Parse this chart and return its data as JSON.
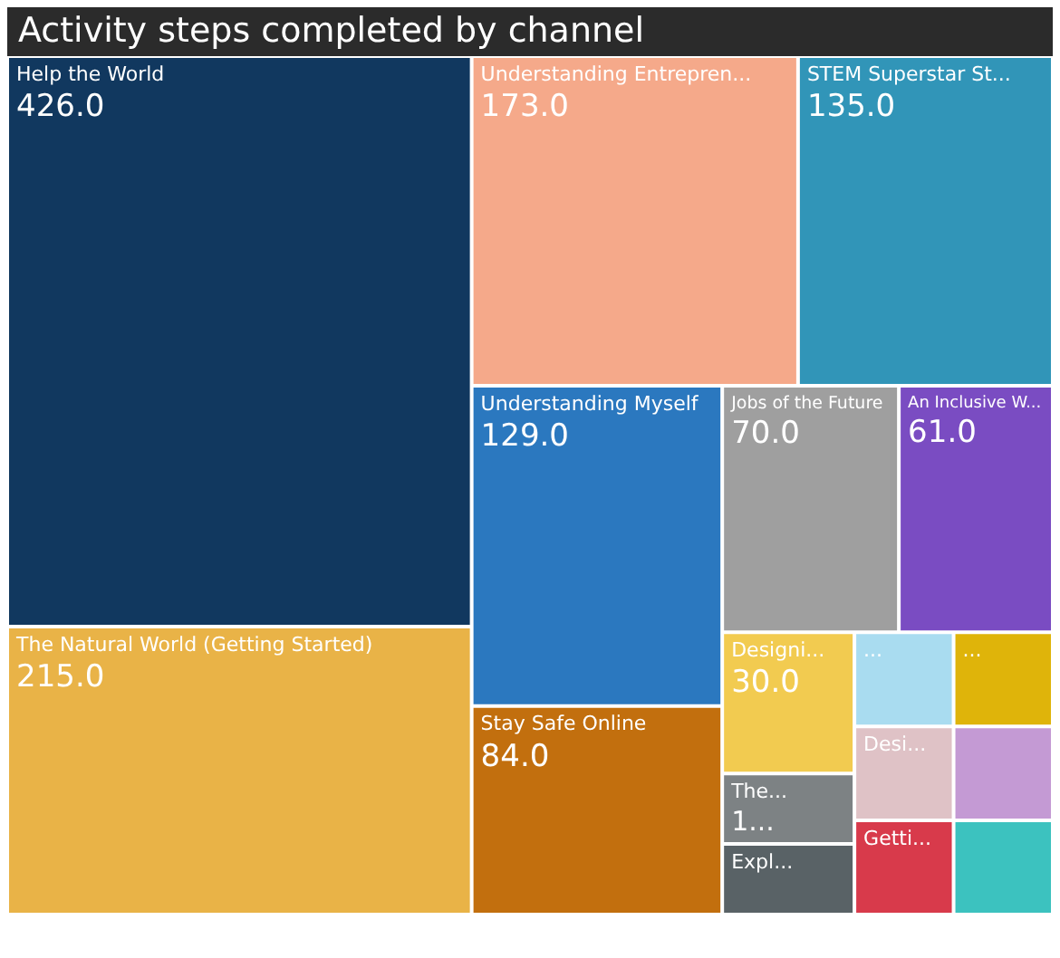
{
  "chart_data": {
    "type": "other",
    "title": "Activity steps completed by channel",
    "categories": [
      "Help the World",
      "The Natural World (Getting Started)",
      "Understanding Entrepren...",
      "STEM Superstar St...",
      "Understanding Myself",
      "Stay Safe Online",
      "Jobs of the Future",
      "An Inclusive W...",
      "Designi...",
      "The...",
      "Expl...",
      "...",
      "...",
      "Desi...",
      "Getti...",
      null,
      null
    ],
    "values": [
      426,
      215,
      173,
      135,
      129,
      84,
      70,
      61,
      30,
      null,
      null,
      null,
      null,
      null,
      null,
      null,
      null
    ],
    "value_labels": [
      "426.0",
      "215.0",
      "173.0",
      "135.0",
      "129.0",
      "84.0",
      "70.0",
      "61.0",
      "30.0",
      "1...",
      null,
      null,
      null,
      null,
      null,
      null,
      null
    ],
    "colors": [
      "#11385f",
      "#e9b347",
      "#f5a98a",
      "#3195b8",
      "#2b78bf",
      "#c26f0e",
      "#9f9f9f",
      "#7a4cc2",
      "#f2cb50",
      "#7d8284",
      "#596266",
      "#a9dcf0",
      "#dfb40a",
      "#dfc2c6",
      "#d83a4b",
      "#c49ad4",
      "#3cc2bf"
    ]
  }
}
